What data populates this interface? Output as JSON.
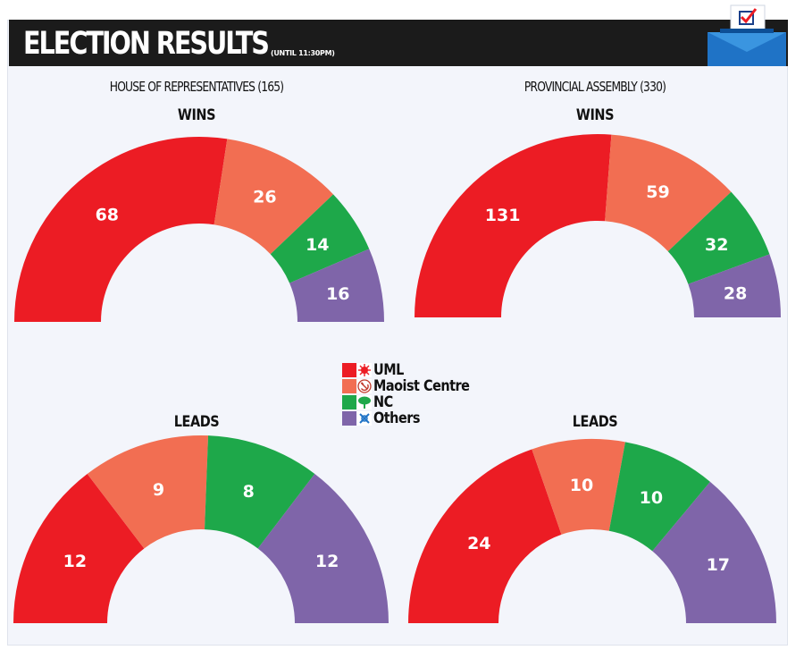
{
  "header": {
    "title": "ELECTION RESULTS",
    "subtitle": "(UNTIL 11:30PM)"
  },
  "houses": [
    {
      "name": "HOUSE OF REPRESENTATIVES (165)",
      "wins_label": "WINS",
      "leads_label": "LEADS"
    },
    {
      "name": "PROVINCIAL ASSEMBLY (330)",
      "wins_label": "WINS",
      "leads_label": "LEADS"
    }
  ],
  "legend": {
    "items": [
      {
        "label": "UML",
        "color": "#ec1c24",
        "icon": "sun-icon"
      },
      {
        "label": "Maoist Centre",
        "color": "#f26e52",
        "icon": "hammer-sickle-icon"
      },
      {
        "label": "NC",
        "color": "#1ea84a",
        "icon": "tree-icon"
      },
      {
        "label": "Others",
        "color": "#7f65a9",
        "icon": "others-icon"
      }
    ]
  },
  "chart_data": [
    {
      "type": "pie",
      "title": "HOUSE OF REPRESENTATIVES (165) WINS",
      "categories": [
        "UML",
        "Maoist Centre",
        "NC",
        "Others"
      ],
      "values": [
        68,
        26,
        14,
        16
      ],
      "colors": [
        "#ec1c24",
        "#f26e52",
        "#1ea84a",
        "#7f65a9"
      ]
    },
    {
      "type": "pie",
      "title": "PROVINCIAL ASSEMBLY (330) WINS",
      "categories": [
        "UML",
        "Maoist Centre",
        "NC",
        "Others"
      ],
      "values": [
        131,
        59,
        32,
        28
      ],
      "colors": [
        "#ec1c24",
        "#f26e52",
        "#1ea84a",
        "#7f65a9"
      ]
    },
    {
      "type": "pie",
      "title": "HOUSE OF REPRESENTATIVES (165) LEADS",
      "categories": [
        "UML",
        "Maoist Centre",
        "NC",
        "Others"
      ],
      "values": [
        12,
        9,
        8,
        12
      ],
      "colors": [
        "#ec1c24",
        "#f26e52",
        "#1ea84a",
        "#7f65a9"
      ]
    },
    {
      "type": "pie",
      "title": "PROVINCIAL ASSEMBLY (330) LEADS",
      "categories": [
        "UML",
        "Maoist Centre",
        "NC",
        "Others"
      ],
      "values": [
        24,
        10,
        10,
        17
      ],
      "colors": [
        "#ec1c24",
        "#f26e52",
        "#1ea84a",
        "#7f65a9"
      ]
    }
  ]
}
